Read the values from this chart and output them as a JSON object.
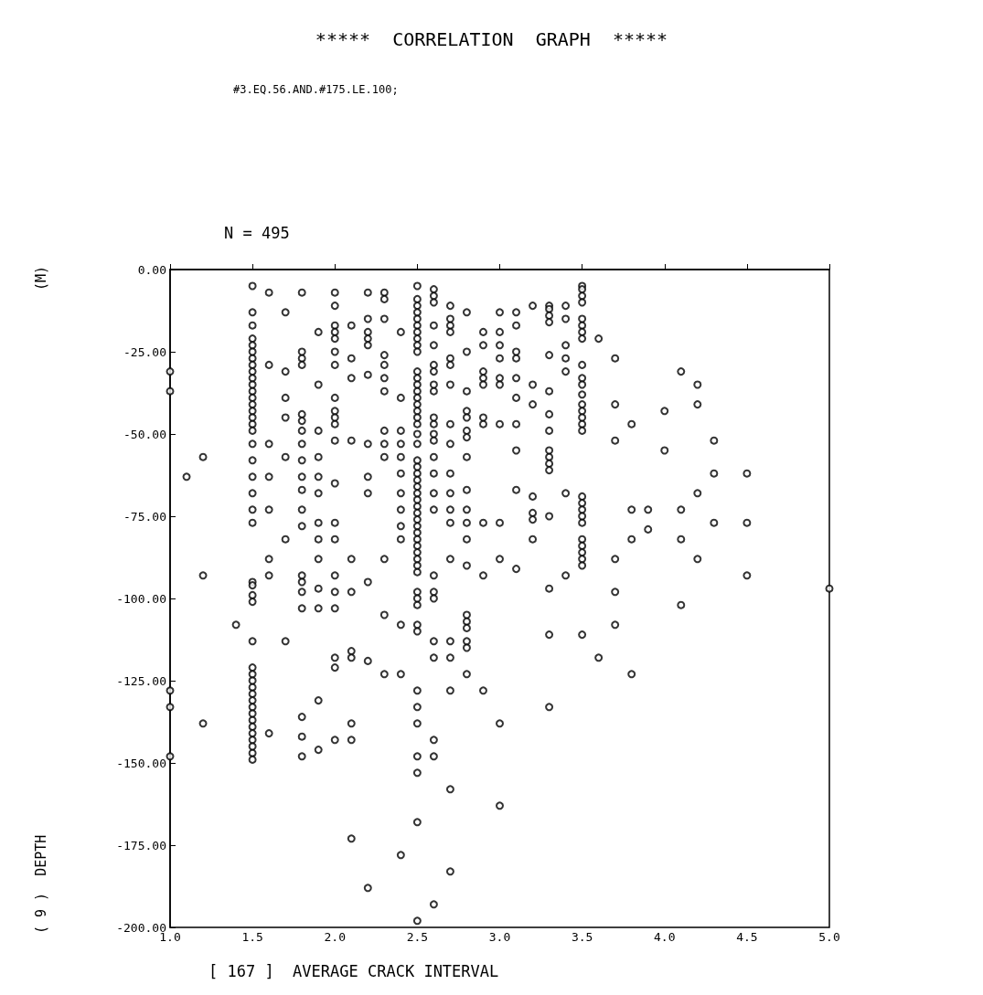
{
  "chart_data": {
    "type": "scatter",
    "title": "*****  CORRELATION  GRAPH  *****",
    "subtitle": "#3.EQ.56.AND.#175.LE.100;",
    "xlabel": "[ 167 ]  AVERAGE CRACK INTERVAL",
    "ylabel": "( 9 )  DEPTH",
    "annotations": [
      "N = 495",
      "(M)"
    ],
    "xlim": [
      1.0,
      5.0
    ],
    "xticks": [
      {
        "value": 1.0,
        "label": "1.0"
      },
      {
        "value": 1.5,
        "label": "1.5"
      },
      {
        "value": 2.0,
        "label": "2.0"
      },
      {
        "value": 2.5,
        "label": "2.5"
      },
      {
        "value": 3.0,
        "label": "3.0"
      },
      {
        "value": 3.5,
        "label": "3.5"
      },
      {
        "value": 4.0,
        "label": "4.0"
      },
      {
        "value": 4.5,
        "label": "4.5"
      },
      {
        "value": 5.0,
        "label": "5.0"
      }
    ],
    "ylim": [
      -200,
      0
    ],
    "yticks": [
      {
        "value": 0,
        "label": "0.00"
      },
      {
        "value": -25,
        "label": "-25.00"
      },
      {
        "value": -50,
        "label": "-50.00"
      },
      {
        "value": -75,
        "label": "-75.00"
      },
      {
        "value": -100,
        "label": "-100.00"
      },
      {
        "value": -125,
        "label": "-125.00"
      },
      {
        "value": -150,
        "label": "-150.00"
      },
      {
        "value": -175,
        "label": "-175.00"
      },
      {
        "value": -200,
        "label": "-200.00"
      }
    ],
    "grid": false,
    "marker": "circle",
    "series": [
      {
        "color": "#000000",
        "x": [
          1.0,
          1.0,
          1.0,
          1.0,
          1.0,
          1.1,
          1.2,
          1.2,
          1.2,
          1.4,
          1.5,
          1.5,
          1.5,
          1.5,
          1.5,
          1.5,
          1.5,
          1.5,
          1.5,
          1.5,
          1.5,
          1.5,
          1.5,
          1.5,
          1.5,
          1.5,
          1.5,
          1.5,
          1.5,
          1.5,
          1.5,
          1.5,
          1.5,
          1.5,
          1.5,
          1.5,
          1.5,
          1.5,
          1.5,
          1.5,
          1.5,
          1.5,
          1.5,
          1.5,
          1.5,
          1.5,
          1.5,
          1.5,
          1.5,
          1.5,
          1.5,
          1.5,
          1.5,
          1.5,
          1.6,
          1.6,
          1.6,
          1.6,
          1.6,
          1.6,
          1.6,
          1.6,
          1.7,
          1.7,
          1.7,
          1.7,
          1.7,
          1.7,
          1.7,
          1.8,
          1.8,
          1.8,
          1.8,
          1.8,
          1.8,
          1.8,
          1.8,
          1.8,
          1.8,
          1.8,
          1.8,
          1.8,
          1.8,
          1.8,
          1.8,
          1.8,
          1.8,
          1.8,
          1.8,
          1.9,
          1.9,
          1.9,
          1.9,
          1.9,
          1.9,
          1.9,
          1.9,
          1.9,
          1.9,
          1.9,
          1.9,
          1.9,
          2.0,
          2.0,
          2.0,
          2.0,
          2.0,
          2.0,
          2.0,
          2.0,
          2.0,
          2.0,
          2.0,
          2.0,
          2.0,
          2.0,
          2.0,
          2.0,
          2.0,
          2.0,
          2.0,
          2.0,
          2.0,
          2.1,
          2.1,
          2.1,
          2.1,
          2.1,
          2.1,
          2.1,
          2.1,
          2.1,
          2.1,
          2.1,
          2.2,
          2.2,
          2.2,
          2.2,
          2.2,
          2.2,
          2.2,
          2.2,
          2.2,
          2.2,
          2.2,
          2.2,
          2.3,
          2.3,
          2.3,
          2.3,
          2.3,
          2.3,
          2.3,
          2.3,
          2.3,
          2.3,
          2.3,
          2.3,
          2.3,
          2.4,
          2.4,
          2.4,
          2.4,
          2.4,
          2.4,
          2.4,
          2.4,
          2.4,
          2.4,
          2.4,
          2.4,
          2.4,
          2.5,
          2.5,
          2.5,
          2.5,
          2.5,
          2.5,
          2.5,
          2.5,
          2.5,
          2.5,
          2.5,
          2.5,
          2.5,
          2.5,
          2.5,
          2.5,
          2.5,
          2.5,
          2.5,
          2.5,
          2.5,
          2.5,
          2.5,
          2.5,
          2.5,
          2.5,
          2.5,
          2.5,
          2.5,
          2.5,
          2.5,
          2.5,
          2.5,
          2.5,
          2.5,
          2.5,
          2.5,
          2.5,
          2.5,
          2.5,
          2.5,
          2.5,
          2.5,
          2.5,
          2.5,
          2.5,
          2.5,
          2.5,
          2.5,
          2.5,
          2.5,
          2.6,
          2.6,
          2.6,
          2.6,
          2.6,
          2.6,
          2.6,
          2.6,
          2.6,
          2.6,
          2.6,
          2.6,
          2.6,
          2.6,
          2.6,
          2.6,
          2.6,
          2.6,
          2.6,
          2.6,
          2.6,
          2.6,
          2.6,
          2.6,
          2.6,
          2.7,
          2.7,
          2.7,
          2.7,
          2.7,
          2.7,
          2.7,
          2.7,
          2.7,
          2.7,
          2.7,
          2.7,
          2.7,
          2.7,
          2.7,
          2.7,
          2.7,
          2.7,
          2.7,
          2.8,
          2.8,
          2.8,
          2.8,
          2.8,
          2.8,
          2.8,
          2.8,
          2.8,
          2.8,
          2.8,
          2.8,
          2.8,
          2.8,
          2.8,
          2.8,
          2.8,
          2.8,
          2.8,
          2.9,
          2.9,
          2.9,
          2.9,
          2.9,
          2.9,
          2.9,
          2.9,
          2.9,
          2.9,
          3.0,
          3.0,
          3.0,
          3.0,
          3.0,
          3.0,
          3.0,
          3.0,
          3.0,
          3.0,
          3.0,
          3.1,
          3.1,
          3.1,
          3.1,
          3.1,
          3.1,
          3.1,
          3.1,
          3.1,
          3.1,
          3.2,
          3.2,
          3.2,
          3.2,
          3.2,
          3.2,
          3.2,
          3.3,
          3.3,
          3.3,
          3.3,
          3.3,
          3.3,
          3.3,
          3.3,
          3.3,
          3.3,
          3.3,
          3.3,
          3.3,
          3.3,
          3.3,
          3.3,
          3.4,
          3.4,
          3.4,
          3.4,
          3.4,
          3.4,
          3.4,
          3.5,
          3.5,
          3.5,
          3.5,
          3.5,
          3.5,
          3.5,
          3.5,
          3.5,
          3.5,
          3.5,
          3.5,
          3.5,
          3.5,
          3.5,
          3.5,
          3.5,
          3.5,
          3.5,
          3.5,
          3.5,
          3.5,
          3.5,
          3.5,
          3.5,
          3.5,
          3.5,
          3.5,
          3.6,
          3.6,
          3.7,
          3.7,
          3.7,
          3.7,
          3.7,
          3.7,
          3.8,
          3.8,
          3.8,
          3.8,
          3.9,
          3.9,
          4.0,
          4.0,
          4.1,
          4.1,
          4.1,
          4.1,
          4.2,
          4.2,
          4.2,
          4.2,
          4.3,
          4.3,
          4.3,
          4.5,
          4.5,
          4.5,
          5.0
        ],
        "values": [
          -31,
          -37,
          -128,
          -133,
          -148,
          -63,
          -57,
          -93,
          -138,
          -108,
          -5,
          -13,
          -17,
          -21,
          -23,
          -25,
          -27,
          -29,
          -31,
          -33,
          -35,
          -37,
          -39,
          -41,
          -43,
          -45,
          -47,
          -49,
          -53,
          -58,
          -63,
          -68,
          -73,
          -77,
          -95,
          -96,
          -99,
          -101,
          -113,
          -121,
          -123,
          -125,
          -127,
          -129,
          -131,
          -133,
          -135,
          -137,
          -139,
          -141,
          -143,
          -145,
          -147,
          -149,
          -7,
          -29,
          -53,
          -63,
          -73,
          -88,
          -93,
          -141,
          -13,
          -31,
          -39,
          -45,
          -57,
          -82,
          -113,
          -7,
          -25,
          -27,
          -29,
          -44,
          -46,
          -49,
          -53,
          -58,
          -63,
          -67,
          -73,
          -78,
          -93,
          -95,
          -98,
          -103,
          -136,
          -142,
          -148,
          -19,
          -35,
          -49,
          -57,
          -63,
          -68,
          -77,
          -82,
          -88,
          -97,
          -103,
          -131,
          -146,
          -7,
          -11,
          -17,
          -19,
          -21,
          -25,
          -29,
          -39,
          -43,
          -45,
          -47,
          -52,
          -65,
          -77,
          -82,
          -93,
          -98,
          -103,
          -118,
          -121,
          -143,
          -17,
          -27,
          -33,
          -52,
          -88,
          -98,
          -116,
          -118,
          -138,
          -143,
          -173,
          -7,
          -15,
          -19,
          -21,
          -23,
          -32,
          -53,
          -63,
          -68,
          -95,
          -119,
          -188,
          -7,
          -9,
          -15,
          -26,
          -29,
          -33,
          -37,
          -49,
          -53,
          -57,
          -88,
          -105,
          -123,
          -19,
          -39,
          -49,
          -53,
          -57,
          -62,
          -68,
          -73,
          -78,
          -82,
          -108,
          -123,
          -178,
          -5,
          -9,
          -11,
          -13,
          -15,
          -17,
          -19,
          -21,
          -23,
          -25,
          -31,
          -33,
          -35,
          -37,
          -39,
          -41,
          -43,
          -45,
          -47,
          -50,
          -53,
          -58,
          -60,
          -62,
          -64,
          -66,
          -68,
          -70,
          -72,
          -74,
          -76,
          -78,
          -80,
          -82,
          -84,
          -86,
          -88,
          -90,
          -92,
          -98,
          -100,
          -102,
          -108,
          -110,
          -128,
          -133,
          -138,
          -148,
          -153,
          -168,
          -198,
          -6,
          -8,
          -10,
          -17,
          -23,
          -29,
          -31,
          -35,
          -37,
          -45,
          -47,
          -50,
          -52,
          -57,
          -62,
          -68,
          -73,
          -93,
          -98,
          -100,
          -113,
          -118,
          -143,
          -148,
          -193,
          -11,
          -15,
          -17,
          -19,
          -27,
          -29,
          -35,
          -47,
          -53,
          -62,
          -68,
          -73,
          -77,
          -88,
          -113,
          -118,
          -128,
          -158,
          -183,
          -13,
          -25,
          -37,
          -43,
          -45,
          -49,
          -51,
          -57,
          -67,
          -73,
          -77,
          -82,
          -90,
          -105,
          -107,
          -109,
          -113,
          -115,
          -123,
          -19,
          -23,
          -31,
          -33,
          -35,
          -45,
          -47,
          -77,
          -93,
          -128,
          -13,
          -19,
          -23,
          -27,
          -33,
          -35,
          -47,
          -77,
          -88,
          -138,
          -163,
          -13,
          -17,
          -25,
          -27,
          -33,
          -39,
          -47,
          -55,
          -67,
          -91,
          -11,
          -35,
          -41,
          -69,
          -74,
          -76,
          -82,
          -11,
          -12,
          -14,
          -16,
          -26,
          -37,
          -44,
          -49,
          -55,
          -57,
          -59,
          -61,
          -75,
          -97,
          -111,
          -133,
          -11,
          -15,
          -23,
          -27,
          -31,
          -68,
          -93,
          -5,
          -6,
          -8,
          -10,
          -15,
          -17,
          -19,
          -21,
          -29,
          -33,
          -35,
          -38,
          -41,
          -43,
          -45,
          -47,
          -49,
          -69,
          -71,
          -73,
          -75,
          -77,
          -82,
          -84,
          -86,
          -88,
          -90,
          -111,
          -21,
          -118,
          -27,
          -41,
          -52,
          -88,
          -98,
          -108,
          -47,
          -73,
          -82,
          -123,
          -73,
          -79,
          -43,
          -55,
          -31,
          -73,
          -82,
          -102,
          -35,
          -41,
          -68,
          -88,
          -52,
          -62,
          -77,
          -62,
          -77,
          -93,
          -97
        ]
      }
    ]
  }
}
